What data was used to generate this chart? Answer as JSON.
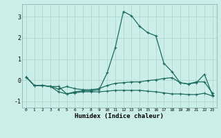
{
  "xlabel": "Humidex (Indice chaleur)",
  "ylabel": "",
  "background_color": "#cceee8",
  "line_color": "#1a6b60",
  "grid_color": "#aad4cc",
  "xlim": [
    -0.5,
    23.5
  ],
  "ylim": [
    -1.3,
    3.6
  ],
  "xticks": [
    0,
    1,
    2,
    3,
    4,
    5,
    6,
    7,
    8,
    9,
    10,
    11,
    12,
    13,
    14,
    15,
    16,
    17,
    18,
    19,
    20,
    21,
    22,
    23
  ],
  "yticks": [
    -1,
    0,
    1,
    2,
    3
  ],
  "x": [
    0,
    1,
    2,
    3,
    4,
    5,
    6,
    7,
    8,
    9,
    10,
    11,
    12,
    13,
    14,
    15,
    16,
    17,
    18,
    19,
    20,
    21,
    22,
    23
  ],
  "line1": [
    0.15,
    -0.25,
    -0.25,
    -0.3,
    -0.3,
    -0.65,
    -0.55,
    -0.5,
    -0.5,
    -0.45,
    0.35,
    1.55,
    3.25,
    3.05,
    2.55,
    2.25,
    2.1,
    0.8,
    0.4,
    -0.12,
    -0.18,
    -0.12,
    0.28,
    -0.72
  ],
  "line2": [
    0.15,
    -0.25,
    -0.25,
    -0.3,
    -0.42,
    -0.3,
    -0.4,
    -0.45,
    -0.45,
    -0.4,
    -0.25,
    -0.15,
    -0.12,
    -0.08,
    -0.08,
    -0.02,
    0.02,
    0.08,
    0.12,
    -0.12,
    -0.18,
    -0.08,
    -0.08,
    -0.62
  ],
  "line3": [
    0.15,
    -0.25,
    -0.25,
    -0.3,
    -0.55,
    -0.65,
    -0.6,
    -0.55,
    -0.55,
    -0.55,
    -0.52,
    -0.48,
    -0.48,
    -0.48,
    -0.48,
    -0.52,
    -0.55,
    -0.6,
    -0.65,
    -0.65,
    -0.68,
    -0.68,
    -0.62,
    -0.75
  ]
}
